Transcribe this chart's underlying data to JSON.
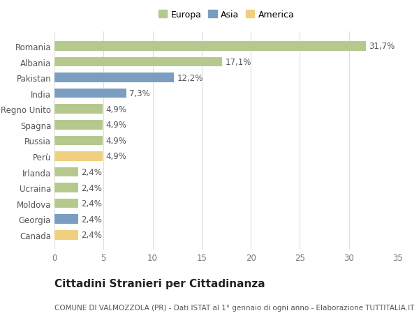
{
  "categories": [
    "Romania",
    "Albania",
    "Pakistan",
    "India",
    "Regno Unito",
    "Spagna",
    "Russia",
    "Perù",
    "Irlanda",
    "Ucraina",
    "Moldova",
    "Georgia",
    "Canada"
  ],
  "values": [
    31.7,
    17.1,
    12.2,
    7.3,
    4.9,
    4.9,
    4.9,
    4.9,
    2.4,
    2.4,
    2.4,
    2.4,
    2.4
  ],
  "labels": [
    "31,7%",
    "17,1%",
    "12,2%",
    "7,3%",
    "4,9%",
    "4,9%",
    "4,9%",
    "4,9%",
    "2,4%",
    "2,4%",
    "2,4%",
    "2,4%",
    "2,4%"
  ],
  "continents": [
    "Europa",
    "Europa",
    "Asia",
    "Asia",
    "Europa",
    "Europa",
    "Europa",
    "America",
    "Europa",
    "Europa",
    "Europa",
    "Asia",
    "America"
  ],
  "continent_colors": {
    "Europa": "#b5c98e",
    "Asia": "#7b9dc0",
    "America": "#f0d080"
  },
  "legend_labels": [
    "Europa",
    "Asia",
    "America"
  ],
  "legend_colors": [
    "#b5c98e",
    "#7b9dc0",
    "#f0d080"
  ],
  "title": "Cittadini Stranieri per Cittadinanza",
  "subtitle": "COMUNE DI VALMOZZOLA (PR) - Dati ISTAT al 1° gennaio di ogni anno - Elaborazione TUTTITALIA.IT",
  "xlim": [
    0,
    35
  ],
  "xticks": [
    0,
    5,
    10,
    15,
    20,
    25,
    30,
    35
  ],
  "bg_color": "#ffffff",
  "grid_color": "#dddddd",
  "bar_height": 0.6,
  "label_fontsize": 8.5,
  "tick_fontsize": 8.5,
  "title_fontsize": 11,
  "subtitle_fontsize": 7.5
}
